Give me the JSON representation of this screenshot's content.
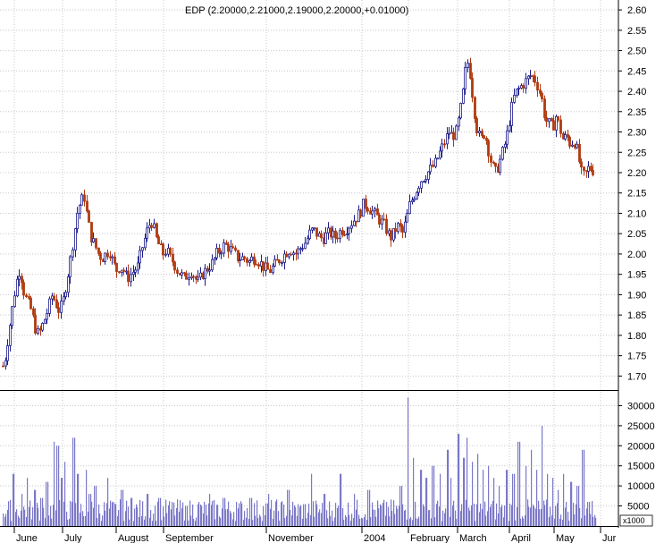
{
  "chart_data": {
    "type": "candlestick",
    "title": "EDP (2.20000,2.21000,2.19000,2.20000,+0.01000)",
    "price_axis": {
      "ylim": [
        1.67,
        2.62
      ],
      "ticks": [
        "2.60",
        "2.55",
        "2.50",
        "2.45",
        "2.40",
        "2.35",
        "2.30",
        "2.25",
        "2.20",
        "2.15",
        "2.10",
        "2.05",
        "2.00",
        "1.95",
        "1.90",
        "1.85",
        "1.80",
        "1.75",
        "1.70"
      ]
    },
    "volume_axis": {
      "ylim": [
        0,
        33000
      ],
      "ticks": [
        "30000",
        "25000",
        "20000",
        "15000",
        "10000",
        "5000"
      ],
      "unit_label": "x1000"
    },
    "months": [
      "June",
      "July",
      "August",
      "September",
      "November",
      "2004",
      "February",
      "March",
      "April",
      "May",
      "Jur"
    ],
    "grid": true,
    "colors": {
      "up": "#1c1c8c",
      "down": "#b03a10",
      "volume": "#7b78c8",
      "grid": "#c8c8c8"
    },
    "price_anchors": [
      [
        0,
        1.74
      ],
      [
        4,
        1.72
      ],
      [
        9,
        1.8
      ],
      [
        13,
        1.86
      ],
      [
        17,
        1.92
      ],
      [
        21,
        1.96
      ],
      [
        24,
        1.94
      ],
      [
        27,
        1.9
      ],
      [
        31,
        1.88
      ],
      [
        35,
        1.86
      ],
      [
        39,
        1.82
      ],
      [
        43,
        1.8
      ],
      [
        48,
        1.83
      ],
      [
        53,
        1.86
      ],
      [
        58,
        1.9
      ],
      [
        62,
        1.88
      ],
      [
        66,
        1.86
      ],
      [
        70,
        1.88
      ],
      [
        74,
        1.93
      ],
      [
        78,
        1.98
      ],
      [
        82,
        2.04
      ],
      [
        86,
        2.1
      ],
      [
        90,
        2.13
      ],
      [
        94,
        2.14
      ],
      [
        98,
        2.08
      ],
      [
        102,
        2.04
      ],
      [
        106,
        2.02
      ],
      [
        110,
        2.0
      ],
      [
        114,
        1.99
      ],
      [
        118,
        2.0
      ],
      [
        122,
        2.01
      ],
      [
        126,
        1.98
      ],
      [
        130,
        1.96
      ],
      [
        134,
        1.97
      ],
      [
        138,
        1.96
      ],
      [
        142,
        1.94
      ],
      [
        146,
        1.95
      ],
      [
        150,
        1.96
      ],
      [
        154,
        1.97
      ],
      [
        158,
        2.01
      ],
      [
        162,
        2.04
      ],
      [
        166,
        2.07
      ],
      [
        170,
        2.08
      ],
      [
        174,
        2.04
      ],
      [
        178,
        2.02
      ],
      [
        182,
        2.0
      ],
      [
        186,
        2.01
      ],
      [
        190,
        1.99
      ],
      [
        194,
        1.98
      ],
      [
        198,
        1.96
      ],
      [
        202,
        1.95
      ],
      [
        206,
        1.94
      ],
      [
        210,
        1.95
      ],
      [
        214,
        1.96
      ],
      [
        218,
        1.94
      ],
      [
        222,
        1.93
      ],
      [
        226,
        1.95
      ],
      [
        230,
        1.96
      ],
      [
        234,
        1.97
      ],
      [
        238,
        1.98
      ],
      [
        242,
        2.0
      ],
      [
        246,
        2.01
      ],
      [
        250,
        2.02
      ],
      [
        254,
        2.02
      ],
      [
        258,
        2.01
      ],
      [
        262,
        2.0
      ],
      [
        266,
        1.99
      ],
      [
        270,
        1.99
      ],
      [
        274,
        1.99
      ],
      [
        278,
        1.98
      ],
      [
        282,
        1.99
      ],
      [
        286,
        1.99
      ],
      [
        290,
        1.98
      ],
      [
        294,
        1.97
      ],
      [
        298,
        1.96
      ],
      [
        302,
        1.96
      ],
      [
        306,
        1.97
      ],
      [
        310,
        1.98
      ],
      [
        314,
        1.99
      ],
      [
        318,
        2.0
      ],
      [
        322,
        2.01
      ],
      [
        326,
        2.01
      ],
      [
        330,
        2.0
      ],
      [
        334,
        2.01
      ],
      [
        338,
        2.02
      ],
      [
        342,
        2.03
      ],
      [
        346,
        2.05
      ],
      [
        350,
        2.06
      ],
      [
        354,
        2.05
      ],
      [
        358,
        2.04
      ],
      [
        362,
        2.04
      ],
      [
        366,
        2.05
      ],
      [
        370,
        2.05
      ],
      [
        374,
        2.04
      ],
      [
        378,
        2.05
      ],
      [
        382,
        2.06
      ],
      [
        386,
        2.06
      ],
      [
        390,
        2.07
      ],
      [
        394,
        2.08
      ],
      [
        398,
        2.09
      ],
      [
        402,
        2.1
      ],
      [
        406,
        2.12
      ],
      [
        410,
        2.12
      ],
      [
        414,
        2.11
      ],
      [
        418,
        2.1
      ],
      [
        422,
        2.09
      ],
      [
        426,
        2.08
      ],
      [
        430,
        2.07
      ],
      [
        434,
        2.05
      ],
      [
        438,
        2.04
      ],
      [
        442,
        2.06
      ],
      [
        446,
        2.07
      ],
      [
        450,
        2.05
      ],
      [
        454,
        2.08
      ],
      [
        458,
        2.12
      ],
      [
        462,
        2.14
      ],
      [
        466,
        2.16
      ],
      [
        470,
        2.18
      ],
      [
        474,
        2.19
      ],
      [
        478,
        2.2
      ],
      [
        482,
        2.21
      ],
      [
        486,
        2.22
      ],
      [
        490,
        2.24
      ],
      [
        494,
        2.26
      ],
      [
        498,
        2.28
      ],
      [
        502,
        2.3
      ],
      [
        506,
        2.29
      ],
      [
        510,
        2.3
      ],
      [
        514,
        2.34
      ],
      [
        518,
        2.4
      ],
      [
        522,
        2.48
      ],
      [
        526,
        2.44
      ],
      [
        530,
        2.36
      ],
      [
        534,
        2.3
      ],
      [
        538,
        2.28
      ],
      [
        542,
        2.3
      ],
      [
        546,
        2.26
      ],
      [
        550,
        2.22
      ],
      [
        554,
        2.2
      ],
      [
        558,
        2.22
      ],
      [
        562,
        2.25
      ],
      [
        566,
        2.28
      ],
      [
        570,
        2.33
      ],
      [
        574,
        2.38
      ],
      [
        578,
        2.4
      ],
      [
        582,
        2.41
      ],
      [
        586,
        2.42
      ],
      [
        590,
        2.43
      ],
      [
        594,
        2.44
      ],
      [
        598,
        2.43
      ],
      [
        602,
        2.41
      ],
      [
        606,
        2.38
      ],
      [
        610,
        2.33
      ],
      [
        614,
        2.32
      ],
      [
        618,
        2.31
      ],
      [
        622,
        2.34
      ],
      [
        626,
        2.31
      ],
      [
        630,
        2.28
      ],
      [
        634,
        2.29
      ],
      [
        638,
        2.27
      ],
      [
        642,
        2.28
      ],
      [
        646,
        2.25
      ],
      [
        650,
        2.2
      ],
      [
        654,
        2.19
      ],
      [
        658,
        2.21
      ],
      [
        662,
        2.21
      ],
      [
        666,
        2.2
      ]
    ],
    "volume_spikes": [
      [
        14,
        13000
      ],
      [
        24,
        8000
      ],
      [
        30,
        12000
      ],
      [
        38,
        9000
      ],
      [
        46,
        7000
      ],
      [
        52,
        11000
      ],
      [
        60,
        21000
      ],
      [
        64,
        20000
      ],
      [
        68,
        12000
      ],
      [
        72,
        16000
      ],
      [
        82,
        22000
      ],
      [
        86,
        13000
      ],
      [
        96,
        14000
      ],
      [
        100,
        8000
      ],
      [
        106,
        10000
      ],
      [
        120,
        12000
      ],
      [
        136,
        9000
      ],
      [
        146,
        7000
      ],
      [
        164,
        8000
      ],
      [
        178,
        7000
      ],
      [
        192,
        6000
      ],
      [
        208,
        5000
      ],
      [
        222,
        6000
      ],
      [
        234,
        8000
      ],
      [
        250,
        7000
      ],
      [
        264,
        6000
      ],
      [
        280,
        7000
      ],
      [
        300,
        8000
      ],
      [
        322,
        9000
      ],
      [
        348,
        13000
      ],
      [
        362,
        8000
      ],
      [
        380,
        13000
      ],
      [
        396,
        8000
      ],
      [
        412,
        9000
      ],
      [
        432,
        6000
      ],
      [
        448,
        10000
      ],
      [
        456,
        32000
      ],
      [
        462,
        17000
      ],
      [
        470,
        14000
      ],
      [
        476,
        12000
      ],
      [
        484,
        15000
      ],
      [
        492,
        13000
      ],
      [
        500,
        19000
      ],
      [
        504,
        12000
      ],
      [
        512,
        23000
      ],
      [
        518,
        17000
      ],
      [
        522,
        22000
      ],
      [
        528,
        16000
      ],
      [
        534,
        18000
      ],
      [
        540,
        14000
      ],
      [
        546,
        15000
      ],
      [
        552,
        12000
      ],
      [
        558,
        10000
      ],
      [
        566,
        14000
      ],
      [
        574,
        13000
      ],
      [
        580,
        21000
      ],
      [
        588,
        15000
      ],
      [
        594,
        19000
      ],
      [
        600,
        14000
      ],
      [
        606,
        25000
      ],
      [
        612,
        13000
      ],
      [
        618,
        12000
      ],
      [
        624,
        9000
      ],
      [
        630,
        13000
      ],
      [
        638,
        11000
      ],
      [
        646,
        10000
      ],
      [
        652,
        19000
      ],
      [
        658,
        6000
      ]
    ]
  }
}
